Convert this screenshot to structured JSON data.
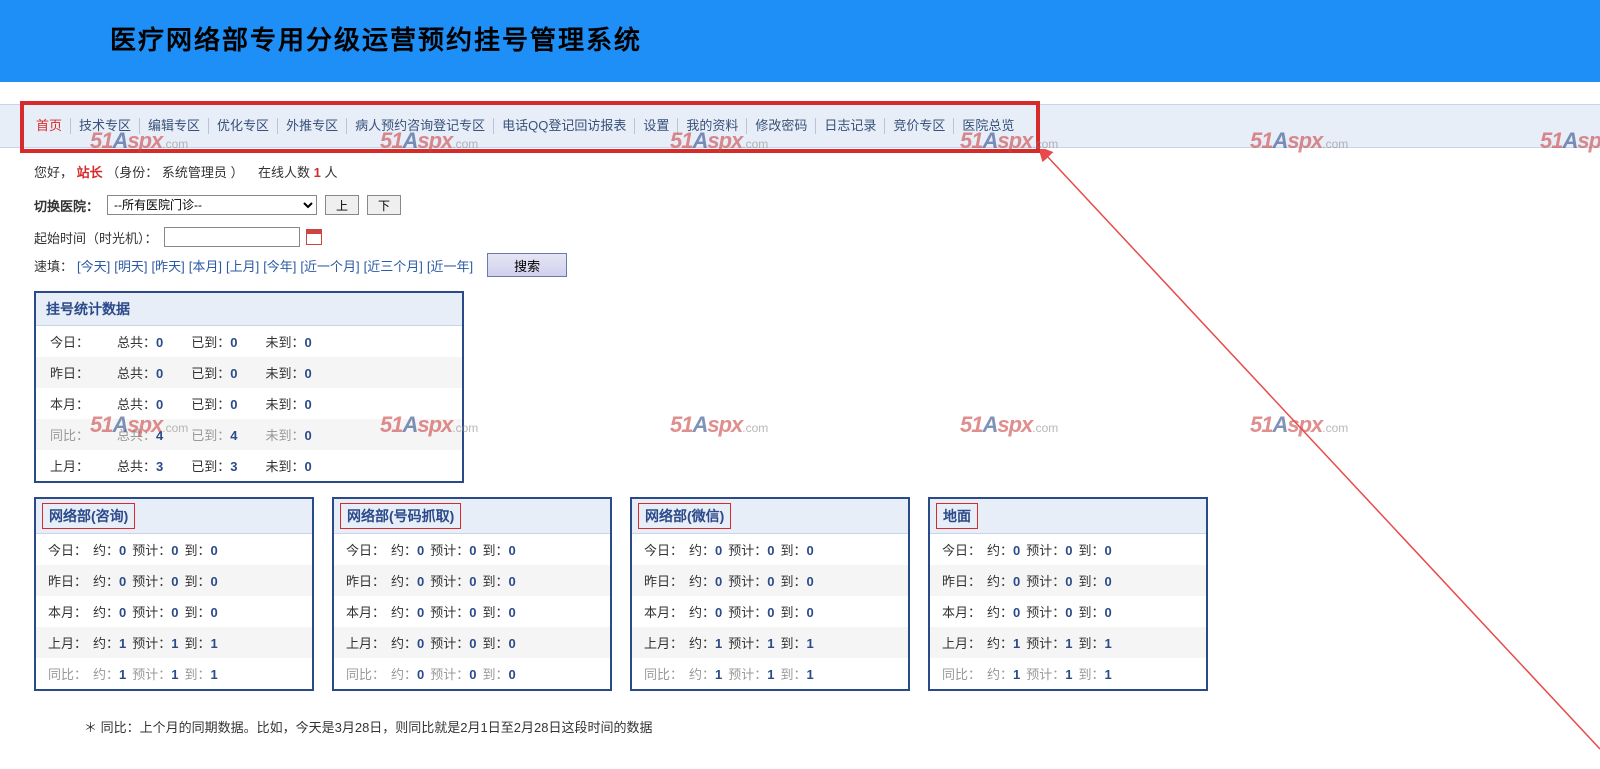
{
  "header": {
    "title": "医疗网络部专用分级运营预约挂号管理系统"
  },
  "nav": {
    "items": [
      {
        "label": "首页",
        "home": true
      },
      {
        "label": "技术专区"
      },
      {
        "label": "编辑专区"
      },
      {
        "label": "优化专区"
      },
      {
        "label": "外推专区"
      },
      {
        "label": "病人预约咨询登记专区"
      },
      {
        "label": "电话QQ登记回访报表"
      },
      {
        "label": "设置"
      },
      {
        "label": "我的资料"
      },
      {
        "label": "修改密码"
      },
      {
        "label": "日志记录"
      },
      {
        "label": "竞价专区"
      },
      {
        "label": "医院总览"
      }
    ]
  },
  "greet": {
    "hello": "您好，",
    "user": "站长",
    "role_l": "（身份：",
    "role": "系统管理员",
    "role_r": "）",
    "online_l": "在线人数 ",
    "online": "1",
    "online_r": " 人"
  },
  "switch": {
    "label": "切换医院：",
    "select": "--所有医院门诊--",
    "up": "上",
    "down": "下"
  },
  "time": {
    "label": "起始时间（时光机）："
  },
  "quick": {
    "label": "速填：",
    "items": [
      "[今天]",
      "[明天]",
      "[昨天]",
      "[本月]",
      "[上月]",
      "[今年]",
      "[近一个月]",
      "[近三个月]",
      "[近一年]"
    ],
    "search": "搜索"
  },
  "stat": {
    "title": "挂号统计数据",
    "rows": [
      {
        "k": "今日：",
        "a": "总共：",
        "av": "0",
        "b": "已到：",
        "bv": "0",
        "c": "未到：",
        "cv": "0",
        "alt": false,
        "mute": false
      },
      {
        "k": "昨日：",
        "a": "总共：",
        "av": "0",
        "b": "已到：",
        "bv": "0",
        "c": "未到：",
        "cv": "0",
        "alt": true,
        "mute": false
      },
      {
        "k": "本月：",
        "a": "总共：",
        "av": "0",
        "b": "已到：",
        "bv": "0",
        "c": "未到：",
        "cv": "0",
        "alt": false,
        "mute": false
      },
      {
        "k": "同比：",
        "a": "总共：",
        "av": "4",
        "b": "已到：",
        "bv": "4",
        "c": "未到：",
        "cv": "0",
        "alt": true,
        "mute": true
      },
      {
        "k": "上月：",
        "a": "总共：",
        "av": "3",
        "b": "已到：",
        "bv": "3",
        "c": "未到：",
        "cv": "0",
        "alt": false,
        "mute": false
      }
    ]
  },
  "panels": [
    {
      "title": "网络部(咨询)",
      "rows": [
        {
          "k": "今日：",
          "a": "约：",
          "av": "0",
          "b": "预计：",
          "bv": "0",
          "c": "到：",
          "cv": "0",
          "alt": false,
          "mute": false
        },
        {
          "k": "昨日：",
          "a": "约：",
          "av": "0",
          "b": "预计：",
          "bv": "0",
          "c": "到：",
          "cv": "0",
          "alt": true,
          "mute": false
        },
        {
          "k": "本月：",
          "a": "约：",
          "av": "0",
          "b": "预计：",
          "bv": "0",
          "c": "到：",
          "cv": "0",
          "alt": false,
          "mute": false
        },
        {
          "k": "上月：",
          "a": "约：",
          "av": "1",
          "b": "预计：",
          "bv": "1",
          "c": "到：",
          "cv": "1",
          "alt": true,
          "mute": false
        },
        {
          "k": "同比：",
          "a": "约：",
          "av": "1",
          "b": "预计：",
          "bv": "1",
          "c": "到：",
          "cv": "1",
          "alt": false,
          "mute": true
        }
      ]
    },
    {
      "title": "网络部(号码抓取)",
      "rows": [
        {
          "k": "今日：",
          "a": "约：",
          "av": "0",
          "b": "预计：",
          "bv": "0",
          "c": "到：",
          "cv": "0",
          "alt": false,
          "mute": false
        },
        {
          "k": "昨日：",
          "a": "约：",
          "av": "0",
          "b": "预计：",
          "bv": "0",
          "c": "到：",
          "cv": "0",
          "alt": true,
          "mute": false
        },
        {
          "k": "本月：",
          "a": "约：",
          "av": "0",
          "b": "预计：",
          "bv": "0",
          "c": "到：",
          "cv": "0",
          "alt": false,
          "mute": false
        },
        {
          "k": "上月：",
          "a": "约：",
          "av": "0",
          "b": "预计：",
          "bv": "0",
          "c": "到：",
          "cv": "0",
          "alt": true,
          "mute": false
        },
        {
          "k": "同比：",
          "a": "约：",
          "av": "0",
          "b": "预计：",
          "bv": "0",
          "c": "到：",
          "cv": "0",
          "alt": false,
          "mute": true
        }
      ]
    },
    {
      "title": "网络部(微信)",
      "rows": [
        {
          "k": "今日：",
          "a": "约：",
          "av": "0",
          "b": "预计：",
          "bv": "0",
          "c": "到：",
          "cv": "0",
          "alt": false,
          "mute": false
        },
        {
          "k": "昨日：",
          "a": "约：",
          "av": "0",
          "b": "预计：",
          "bv": "0",
          "c": "到：",
          "cv": "0",
          "alt": true,
          "mute": false
        },
        {
          "k": "本月：",
          "a": "约：",
          "av": "0",
          "b": "预计：",
          "bv": "0",
          "c": "到：",
          "cv": "0",
          "alt": false,
          "mute": false
        },
        {
          "k": "上月：",
          "a": "约：",
          "av": "1",
          "b": "预计：",
          "bv": "1",
          "c": "到：",
          "cv": "1",
          "alt": true,
          "mute": false
        },
        {
          "k": "同比：",
          "a": "约：",
          "av": "1",
          "b": "预计：",
          "bv": "1",
          "c": "到：",
          "cv": "1",
          "alt": false,
          "mute": true
        }
      ]
    },
    {
      "title": "地面",
      "rows": [
        {
          "k": "今日：",
          "a": "约：",
          "av": "0",
          "b": "预计：",
          "bv": "0",
          "c": "到：",
          "cv": "0",
          "alt": false,
          "mute": false
        },
        {
          "k": "昨日：",
          "a": "约：",
          "av": "0",
          "b": "预计：",
          "bv": "0",
          "c": "到：",
          "cv": "0",
          "alt": true,
          "mute": false
        },
        {
          "k": "本月：",
          "a": "约：",
          "av": "0",
          "b": "预计：",
          "bv": "0",
          "c": "到：",
          "cv": "0",
          "alt": false,
          "mute": false
        },
        {
          "k": "上月：",
          "a": "约：",
          "av": "1",
          "b": "预计：",
          "bv": "1",
          "c": "到：",
          "cv": "1",
          "alt": true,
          "mute": false
        },
        {
          "k": "同比：",
          "a": "约：",
          "av": "1",
          "b": "预计：",
          "bv": "1",
          "c": "到：",
          "cv": "1",
          "alt": false,
          "mute": true
        }
      ]
    }
  ],
  "footnote": "＊ 同比：上个月的同期数据。比如，今天是3月28日，则同比就是2月1日至2月28日这段时间的数据",
  "annotation": {
    "nav_highlight_color": "#d72a2a",
    "arrow_color": "#e84a4a"
  },
  "watermark": {
    "text": "51Aspx",
    "suffix": ".com"
  }
}
